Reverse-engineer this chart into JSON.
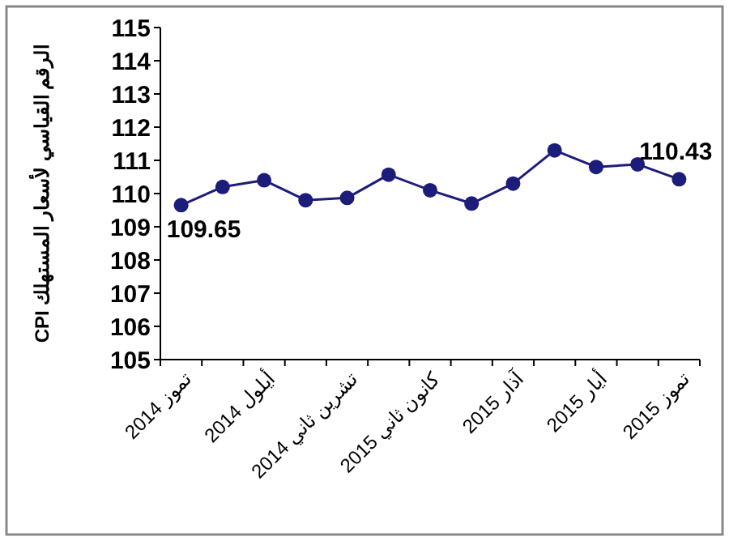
{
  "chart_data": {
    "type": "line",
    "ylabel": "الرقم القياسي لأسعار المستهلك CPI",
    "categories": [
      "تموز 2014",
      null,
      "أيلول 2014",
      null,
      "تشرين ثاني 2014",
      null,
      "كانون ثاني 2015",
      null,
      "آذار 2015",
      null,
      "أيار 2015",
      null,
      "تموز 2015"
    ],
    "series": [
      {
        "color": "#1c1c7a",
        "values": [
          109.65,
          110.2,
          110.4,
          109.8,
          109.87,
          110.57,
          110.1,
          109.7,
          110.3,
          111.3,
          110.8,
          110.88,
          110.43
        ]
      }
    ],
    "ylim": [
      105,
      115
    ],
    "yticks": [
      105,
      106,
      107,
      108,
      109,
      110,
      111,
      112,
      113,
      114,
      115
    ],
    "annotations": [
      {
        "text": "109.65",
        "x": "تموز 2014",
        "y": 109.65
      },
      {
        "text": "110.43",
        "x": "تموز 2015",
        "y": 110.43
      }
    ],
    "marker": "circle",
    "grid": false
  }
}
